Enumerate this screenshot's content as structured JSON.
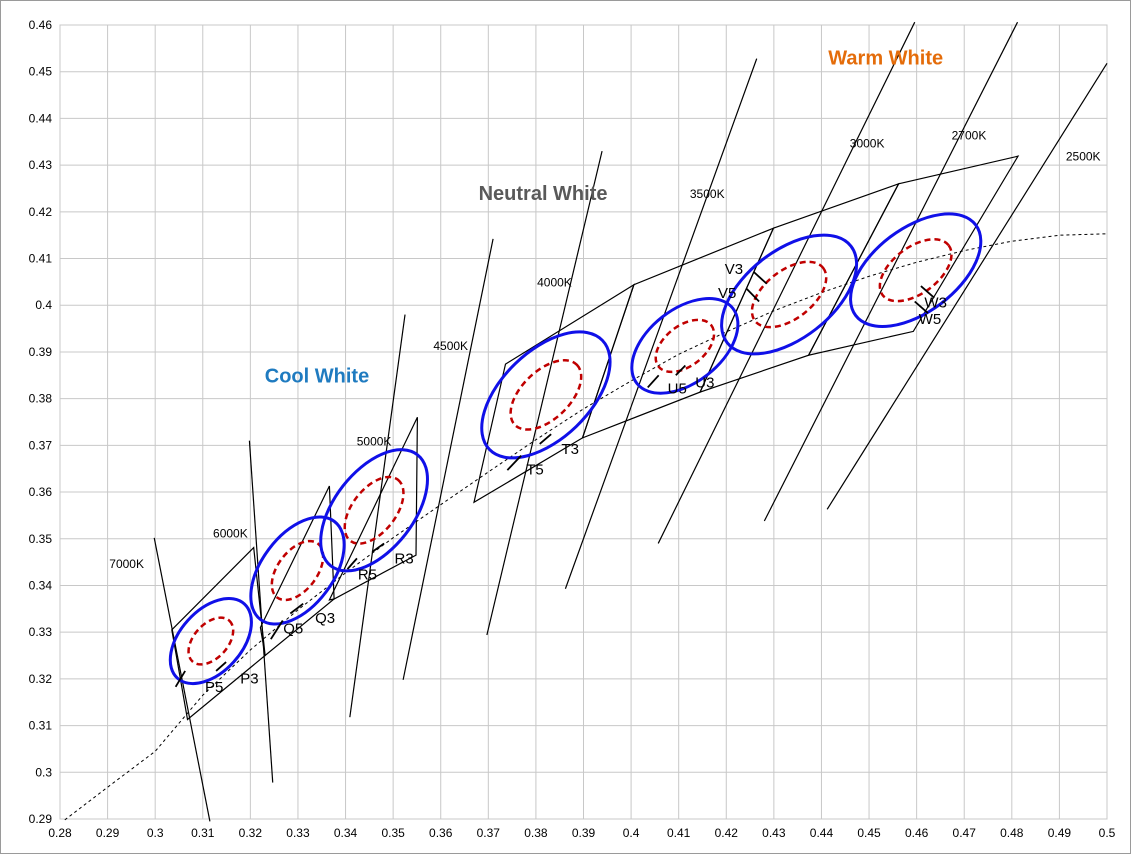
{
  "chart_data": {
    "type": "scatter",
    "xlim": [
      0.28,
      0.5
    ],
    "ylim": [
      0.29,
      0.46
    ],
    "x_ticks": [
      "0.28",
      "0.29",
      "0.3",
      "0.31",
      "0.32",
      "0.33",
      "0.34",
      "0.35",
      "0.36",
      "0.37",
      "0.38",
      "0.39",
      "0.4",
      "0.41",
      "0.42",
      "0.43",
      "0.44",
      "0.45",
      "0.46",
      "0.47",
      "0.48",
      "0.49",
      "0.5"
    ],
    "y_ticks": [
      "0.29",
      "0.3",
      "0.31",
      "0.32",
      "0.33",
      "0.34",
      "0.35",
      "0.36",
      "0.37",
      "0.38",
      "0.39",
      "0.4",
      "0.41",
      "0.42",
      "0.43",
      "0.44",
      "0.45",
      "0.46"
    ],
    "grid": true,
    "colors": {
      "outer_ellipse": "#1010e8",
      "inner_ellipse": "#c00000",
      "cool": "#1f7bc0",
      "neutral": "#595959",
      "warm": "#e46c0a"
    },
    "regions": [
      {
        "text": "Cool White",
        "x": 0.334,
        "y": 0.3835,
        "color": "#1f7bc0"
      },
      {
        "text": "Neutral White",
        "x": 0.3815,
        "y": 0.4225,
        "color": "#595959"
      },
      {
        "text": "Warm White",
        "x": 0.4535,
        "y": 0.4515,
        "color": "#e46c0a"
      }
    ],
    "planckian_locus": [
      [
        0.281,
        0.2898
      ],
      [
        0.29,
        0.2968
      ],
      [
        0.3,
        0.3045
      ],
      [
        0.31,
        0.3165
      ],
      [
        0.32,
        0.3262
      ],
      [
        0.33,
        0.3348
      ],
      [
        0.34,
        0.3427
      ],
      [
        0.35,
        0.3502
      ],
      [
        0.36,
        0.3573
      ],
      [
        0.37,
        0.3643
      ],
      [
        0.38,
        0.3712
      ],
      [
        0.39,
        0.3778
      ],
      [
        0.4,
        0.3838
      ],
      [
        0.41,
        0.3895
      ],
      [
        0.42,
        0.3943
      ],
      [
        0.43,
        0.3988
      ],
      [
        0.44,
        0.4027
      ],
      [
        0.45,
        0.4062
      ],
      [
        0.46,
        0.4092
      ],
      [
        0.47,
        0.4117
      ],
      [
        0.48,
        0.4137
      ],
      [
        0.49,
        0.415
      ],
      [
        0.5,
        0.4153
      ]
    ],
    "isotherms": [
      {
        "label": "7000K",
        "from": [
          0.2998,
          0.3502
        ],
        "to": [
          0.3115,
          0.2895
        ],
        "label_at": [
          0.294,
          0.3437
        ]
      },
      {
        "label": "6000K",
        "from": [
          0.3198,
          0.371
        ],
        "to": [
          0.3247,
          0.2978
        ],
        "label_at": [
          0.3158,
          0.3503
        ]
      },
      {
        "label": "5000K",
        "from": [
          0.3409,
          0.3118
        ],
        "to": [
          0.3525,
          0.398
        ],
        "label_at": [
          0.346,
          0.37
        ]
      },
      {
        "label": "4500K",
        "from": [
          0.3521,
          0.3198
        ],
        "to": [
          0.371,
          0.4142
        ],
        "label_at": [
          0.3621,
          0.3904
        ]
      },
      {
        "label": "4000K",
        "from": [
          0.3697,
          0.3294
        ],
        "to": [
          0.3939,
          0.433
        ],
        "label_at": [
          0.3839,
          0.404
        ]
      },
      {
        "label": "3500K",
        "from": [
          0.3862,
          0.3393
        ],
        "to": [
          0.4264,
          0.4528
        ],
        "label_at": [
          0.416,
          0.423
        ]
      },
      {
        "label": "3000K",
        "from": [
          0.4057,
          0.349
        ],
        "to": [
          0.4596,
          0.4606
        ],
        "label_at": [
          0.4496,
          0.4338
        ]
      },
      {
        "label": "2700K",
        "from": [
          0.428,
          0.3538
        ],
        "to": [
          0.4812,
          0.4606
        ],
        "label_at": [
          0.471,
          0.4355
        ]
      },
      {
        "label": "2500K",
        "from": [
          0.4412,
          0.3563
        ],
        "to": [
          0.5,
          0.4518
        ],
        "label_at": [
          0.495,
          0.431
        ]
      }
    ],
    "quads": [
      [
        [
          0.3035,
          0.3305
        ],
        [
          0.3207,
          0.3481
        ],
        [
          0.3231,
          0.325
        ],
        [
          0.3068,
          0.3113
        ]
      ],
      [
        [
          0.3221,
          0.331
        ],
        [
          0.3366,
          0.3613
        ],
        [
          0.3376,
          0.3371
        ],
        [
          0.3231,
          0.325
        ]
      ],
      [
        [
          0.3366,
          0.3369
        ],
        [
          0.3551,
          0.376
        ],
        [
          0.3548,
          0.3465
        ],
        [
          0.3376,
          0.3371
        ]
      ],
      [
        [
          0.3736,
          0.3874
        ],
        [
          0.4006,
          0.4044
        ],
        [
          0.3898,
          0.3716
        ],
        [
          0.367,
          0.3578
        ]
      ],
      [
        [
          0.4006,
          0.4044
        ],
        [
          0.4299,
          0.4165
        ],
        [
          0.4145,
          0.3814
        ],
        [
          0.3898,
          0.3716
        ]
      ],
      [
        [
          0.4299,
          0.4165
        ],
        [
          0.4562,
          0.426
        ],
        [
          0.4373,
          0.3893
        ],
        [
          0.4145,
          0.3814
        ]
      ],
      [
        [
          0.4562,
          0.426
        ],
        [
          0.4813,
          0.4319
        ],
        [
          0.4593,
          0.3944
        ],
        [
          0.4373,
          0.3893
        ]
      ]
    ],
    "ellipses": [
      {
        "cx": 0.3117,
        "cy": 0.3281,
        "rx": 0.0105,
        "ry": 0.0065,
        "angle": -48
      },
      {
        "cx": 0.3299,
        "cy": 0.3432,
        "rx": 0.0129,
        "ry": 0.0075,
        "angle": -53
      },
      {
        "cx": 0.346,
        "cy": 0.3561,
        "rx": 0.0148,
        "ry": 0.0083,
        "angle": -52
      },
      {
        "cx": 0.3821,
        "cy": 0.3808,
        "rx": 0.0165,
        "ry": 0.0092,
        "angle": -44
      },
      {
        "cx": 0.4113,
        "cy": 0.3913,
        "rx": 0.0128,
        "ry": 0.0077,
        "angle": -38
      },
      {
        "cx": 0.4332,
        "cy": 0.4023,
        "rx": 0.0165,
        "ry": 0.0092,
        "angle": -38
      },
      {
        "cx": 0.4598,
        "cy": 0.4075,
        "rx": 0.0158,
        "ry": 0.0088,
        "angle": -37
      }
    ],
    "bin_labels": [
      {
        "text": "P5",
        "x": 0.3124,
        "y": 0.3172,
        "tick_from": [
          0.3063,
          0.3217
        ],
        "tick_to": [
          0.3043,
          0.3183
        ]
      },
      {
        "text": "P3",
        "x": 0.3198,
        "y": 0.319,
        "tick_from": [
          0.3149,
          0.3236
        ],
        "tick_to": [
          0.3128,
          0.3217
        ]
      },
      {
        "text": "Q5",
        "x": 0.329,
        "y": 0.3297,
        "tick_from": [
          0.3268,
          0.3325
        ],
        "tick_to": [
          0.3243,
          0.3285
        ]
      },
      {
        "text": "Q3",
        "x": 0.3357,
        "y": 0.332,
        "tick_from": [
          0.3311,
          0.3361
        ],
        "tick_to": [
          0.3284,
          0.334
        ]
      },
      {
        "text": "R5",
        "x": 0.3446,
        "y": 0.3413,
        "tick_from": [
          0.3424,
          0.3458
        ],
        "tick_to": [
          0.3404,
          0.3435
        ]
      },
      {
        "text": "R3",
        "x": 0.3523,
        "y": 0.3447,
        "tick_from": [
          0.3481,
          0.349
        ],
        "tick_to": [
          0.3456,
          0.3472
        ]
      },
      {
        "text": "T5",
        "x": 0.3798,
        "y": 0.3638,
        "tick_from": [
          0.3769,
          0.3678
        ],
        "tick_to": [
          0.374,
          0.3647
        ]
      },
      {
        "text": "T3",
        "x": 0.3872,
        "y": 0.3682,
        "tick_from": [
          0.3832,
          0.3724
        ],
        "tick_to": [
          0.3808,
          0.3703
        ]
      },
      {
        "text": "U5",
        "x": 0.4097,
        "y": 0.3811,
        "tick_from": [
          0.4058,
          0.385
        ],
        "tick_to": [
          0.4035,
          0.3824
        ]
      },
      {
        "text": "U3",
        "x": 0.4155,
        "y": 0.3824,
        "tick_from": [
          0.4114,
          0.3871
        ],
        "tick_to": [
          0.4094,
          0.385
        ]
      },
      {
        "text": "V3",
        "x": 0.4216,
        "y": 0.4067,
        "tick_from": [
          0.4257,
          0.4072
        ],
        "tick_to": [
          0.4285,
          0.4046
        ]
      },
      {
        "text": "V5",
        "x": 0.4202,
        "y": 0.4016,
        "tick_from": [
          0.4243,
          0.4035
        ],
        "tick_to": [
          0.4269,
          0.4008
        ]
      },
      {
        "text": "W3",
        "x": 0.464,
        "y": 0.3995,
        "tick_from": [
          0.4637,
          0.4016
        ],
        "tick_to": [
          0.4609,
          0.4041
        ]
      },
      {
        "text": "W5",
        "x": 0.4628,
        "y": 0.396,
        "tick_from": [
          0.4624,
          0.3983
        ],
        "tick_to": [
          0.4596,
          0.4008
        ]
      }
    ]
  }
}
